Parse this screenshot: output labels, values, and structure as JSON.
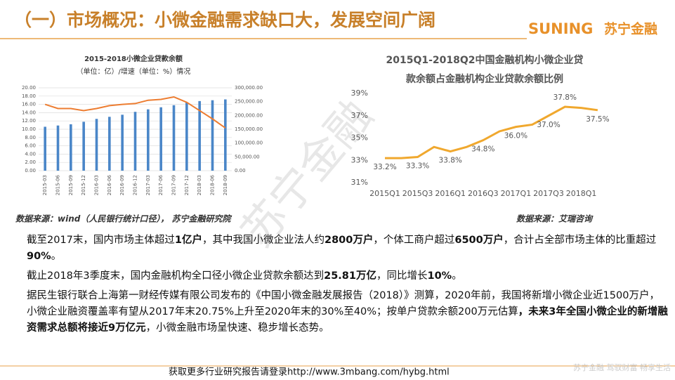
{
  "header": {
    "title": "（一）市场概况：小微金融需求缺口大，发展空间广阔",
    "logo_latin": "SUNING",
    "logo_cn": "苏宁金融"
  },
  "chart_data": [
    {
      "type": "bar-line",
      "title": [
        "2015-2018小微企业贷款余额",
        "（单位：亿）/增速（单位：%）情况"
      ],
      "categories": [
        "2015-03",
        "2015-06",
        "2015-09",
        "2015-12",
        "2016-03",
        "2016-06",
        "2016-09",
        "2016-12",
        "2017-03",
        "2017-06",
        "2017-09",
        "2017-12",
        "2018-03",
        "2018-06",
        "2018-09"
      ],
      "series": [
        {
          "type": "bar",
          "color": "#4a86c8",
          "axis": "y2",
          "values": [
            159000,
            163500,
            168000,
            177000,
            187500,
            195000,
            202500,
            213000,
            222000,
            229500,
            237000,
            247500,
            252000,
            255000,
            258000
          ]
        },
        {
          "type": "line",
          "color": "#ed7d31",
          "axis": "y",
          "values": [
            16.0,
            15.0,
            15.0,
            14.5,
            15.0,
            15.7,
            16.0,
            16.2,
            17.0,
            17.2,
            17.8,
            16.5,
            14.5,
            12.5,
            10.3
          ]
        }
      ],
      "ylim": [
        0,
        20
      ],
      "yticks": [
        {
          "value": 0,
          "label": "0.00"
        },
        {
          "value": 2,
          "label": "2.00"
        },
        {
          "value": 4,
          "label": "4.00"
        },
        {
          "value": 6,
          "label": "6.00"
        },
        {
          "value": 8,
          "label": "8.00"
        },
        {
          "value": 10,
          "label": "10.00"
        },
        {
          "value": 12,
          "label": "12.00"
        },
        {
          "value": 14,
          "label": "14.00"
        },
        {
          "value": 16,
          "label": "16.00"
        },
        {
          "value": 18,
          "label": "18.00"
        },
        {
          "value": 20,
          "label": "20.00"
        }
      ],
      "y2lim": [
        0,
        300000
      ],
      "y2ticks": [
        {
          "value": 0,
          "label": "0.00"
        },
        {
          "value": 50000,
          "label": "50,000.00"
        },
        {
          "value": 100000,
          "label": "100,000.00"
        },
        {
          "value": 150000,
          "label": "150,000.00"
        },
        {
          "value": 200000,
          "label": "200,000.00"
        },
        {
          "value": 250000,
          "label": "250,000.00"
        },
        {
          "value": 300000,
          "label": "300,000.00"
        }
      ],
      "grid": true,
      "source": "数据来源：wind（人民银行统计口径），   苏宁金融研究院"
    },
    {
      "type": "line",
      "title": [
        "2015Q1-2018Q2中国金融机构小微企业贷",
        "款余额占金融机构企业贷款余额比例"
      ],
      "categories": [
        "2015Q1",
        null,
        "2015Q3",
        null,
        "2016Q1",
        null,
        "2016Q3",
        null,
        "2017Q1",
        null,
        "2017Q3",
        null,
        "2018Q1",
        null
      ],
      "series": [
        {
          "color": "#f0a82e",
          "values": [
            33.2,
            33.2,
            33.3,
            34.2,
            33.8,
            34.2,
            34.8,
            35.6,
            36.0,
            36.2,
            37.0,
            37.8,
            37.7,
            37.5
          ],
          "value_labels": [
            "33.2%",
            null,
            "33.3%",
            null,
            "33.8%",
            null,
            "34.8%",
            null,
            "36.0%",
            null,
            "37.0%",
            "37.8%",
            null,
            "37.5%"
          ]
        }
      ],
      "ylim": [
        31,
        39
      ],
      "yticks": [
        {
          "value": 31,
          "label": "31%"
        },
        {
          "value": 33,
          "label": "33%"
        },
        {
          "value": 35,
          "label": "35%"
        },
        {
          "value": 37,
          "label": "37%"
        },
        {
          "value": 39,
          "label": "39%"
        }
      ],
      "grid": false,
      "source": "数据来源：艾瑞咨询"
    }
  ],
  "paragraphs": [
    {
      "runs": [
        {
          "text": "截至2017末，国内市场主体超过",
          "bold": false
        },
        {
          "text": "1亿户",
          "bold": true
        },
        {
          "text": "，其中我国小微企业法人约",
          "bold": false
        },
        {
          "text": "2800万户",
          "bold": true
        },
        {
          "text": "，个体工商户超过",
          "bold": false
        },
        {
          "text": "6500万户",
          "bold": true
        },
        {
          "text": "，合计占全部市场主体的比重超过",
          "bold": false
        },
        {
          "text": "90%",
          "bold": true
        },
        {
          "text": "。",
          "bold": false
        }
      ]
    },
    {
      "runs": [
        {
          "text": "截止2018年3季度末，国内金融机构全口径小微企业贷款余额达到",
          "bold": false
        },
        {
          "text": "25.81万亿",
          "bold": true
        },
        {
          "text": "，同比增长",
          "bold": false
        },
        {
          "text": "10%",
          "bold": true
        },
        {
          "text": "。",
          "bold": false
        }
      ]
    },
    {
      "runs": [
        {
          "text": "据民生银行联合上海第一财经传媒有限公司发布的《中国小微金融发展报告（2018）》测算，2020年前，我国将新增小微企业近1500万户，小微企业融资覆盖率有望从2017年末20.75%上升至2020年末的30%至40%；按单户贷款余额200万元估算",
          "bold": false
        },
        {
          "text": "，未来3年全国小微企业的新增融资需求总额将接近9万亿元",
          "bold": true
        },
        {
          "text": "，小微金融市场呈快速、稳步增长态势。",
          "bold": false
        }
      ]
    }
  ],
  "watermark": "苏宁金融",
  "footer": {
    "link": "获取更多行业研究报告请登录http://www.3mbang.com/hybg.html",
    "slogan": "苏宁金融  驾驭财富  畅享生活"
  }
}
